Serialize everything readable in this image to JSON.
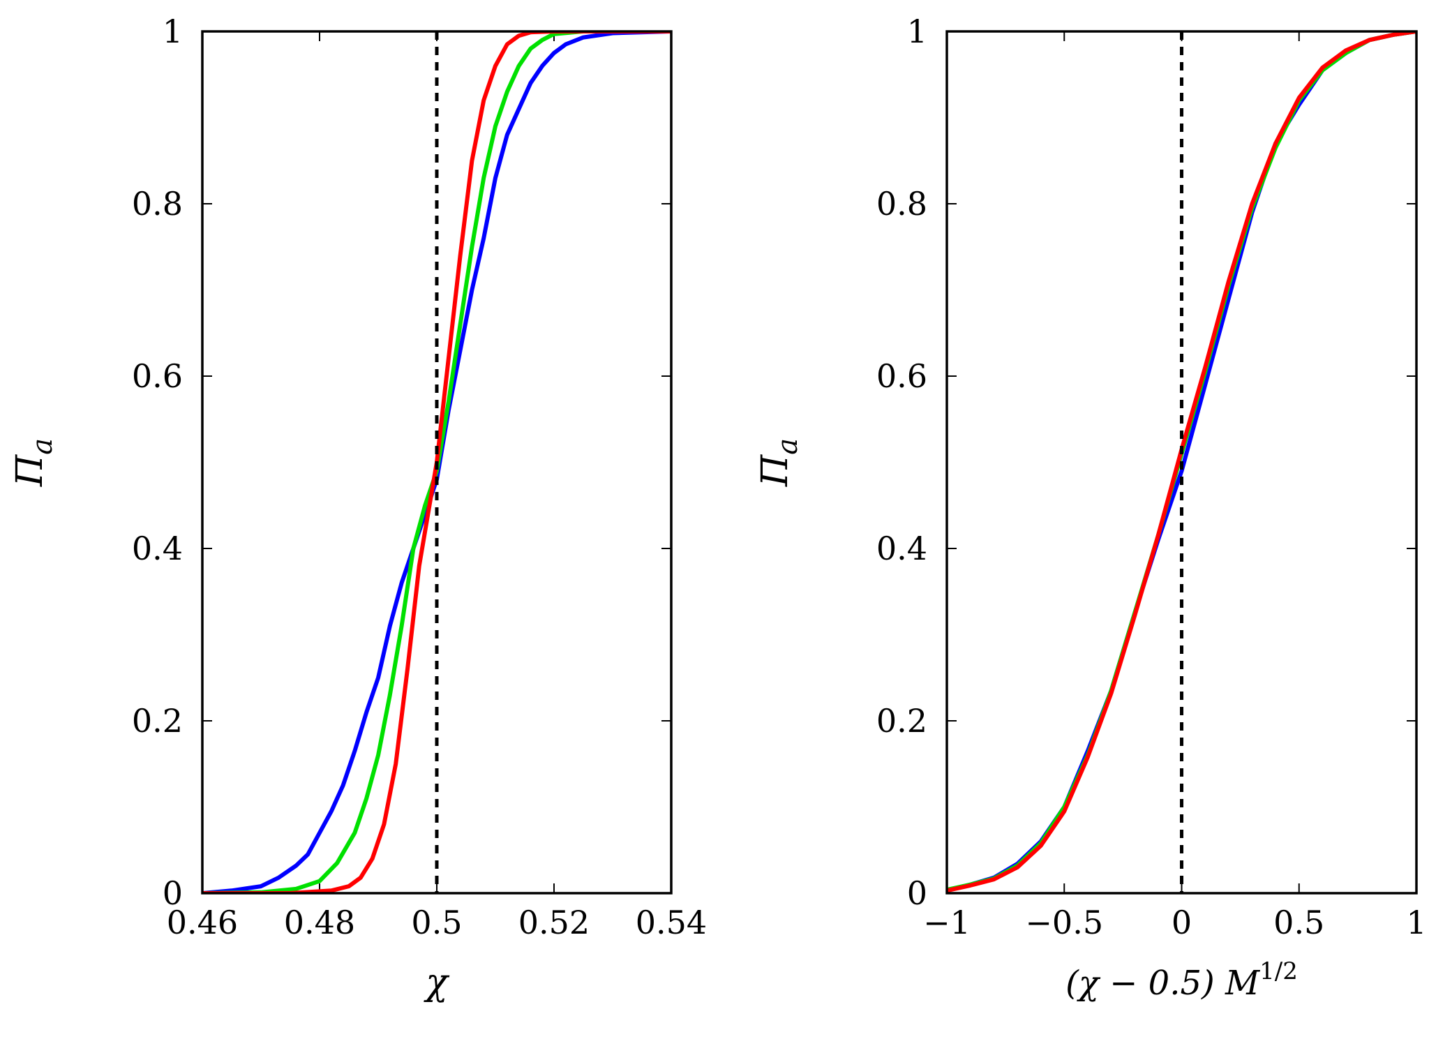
{
  "colors": {
    "blue": "#0000ff",
    "green": "#00e000",
    "red": "#ff0000",
    "axis": "#000000"
  },
  "chart_data": [
    {
      "type": "line",
      "panel": "left",
      "xlabel": "χ",
      "ylabel": "Π",
      "ylabel_sub": "a",
      "xlim": [
        0.46,
        0.54
      ],
      "ylim": [
        0,
        1
      ],
      "xticks": [
        0.46,
        0.48,
        0.5,
        0.52,
        0.54
      ],
      "xtick_labels": [
        "0.46",
        "0.48",
        "0.5",
        "0.52",
        "0.54"
      ],
      "yticks": [
        0,
        0.2,
        0.4,
        0.6,
        0.8,
        1
      ],
      "ytick_labels": [
        "0",
        "0.2",
        "0.4",
        "0.6",
        "0.8",
        "1"
      ],
      "vline_x": 0.5,
      "series": [
        {
          "name": "blue",
          "color": "#0000ff",
          "x": [
            0.46,
            0.465,
            0.47,
            0.473,
            0.476,
            0.478,
            0.48,
            0.482,
            0.484,
            0.486,
            0.488,
            0.49,
            0.492,
            0.494,
            0.496,
            0.498,
            0.5,
            0.502,
            0.504,
            0.506,
            0.508,
            0.51,
            0.512,
            0.514,
            0.516,
            0.518,
            0.52,
            0.522,
            0.525,
            0.53,
            0.54
          ],
          "y": [
            0.0,
            0.003,
            0.008,
            0.018,
            0.032,
            0.045,
            0.07,
            0.095,
            0.125,
            0.165,
            0.21,
            0.25,
            0.31,
            0.36,
            0.4,
            0.44,
            0.48,
            0.56,
            0.63,
            0.7,
            0.76,
            0.83,
            0.88,
            0.91,
            0.94,
            0.96,
            0.975,
            0.985,
            0.993,
            0.998,
            1.0
          ]
        },
        {
          "name": "green",
          "color": "#00e000",
          "x": [
            0.46,
            0.47,
            0.476,
            0.48,
            0.483,
            0.486,
            0.488,
            0.49,
            0.492,
            0.494,
            0.496,
            0.498,
            0.5,
            0.502,
            0.504,
            0.506,
            0.508,
            0.51,
            0.512,
            0.514,
            0.516,
            0.518,
            0.52,
            0.525,
            0.54
          ],
          "y": [
            0.0,
            0.001,
            0.005,
            0.014,
            0.035,
            0.07,
            0.11,
            0.16,
            0.23,
            0.31,
            0.4,
            0.45,
            0.49,
            0.57,
            0.66,
            0.75,
            0.83,
            0.89,
            0.93,
            0.96,
            0.98,
            0.99,
            0.997,
            1.0,
            1.0
          ]
        },
        {
          "name": "red",
          "color": "#ff0000",
          "x": [
            0.46,
            0.475,
            0.482,
            0.485,
            0.487,
            0.489,
            0.491,
            0.493,
            0.495,
            0.497,
            0.499,
            0.5,
            0.502,
            0.504,
            0.506,
            0.508,
            0.51,
            0.512,
            0.514,
            0.516,
            0.52,
            0.54
          ],
          "y": [
            0.0,
            0.0,
            0.003,
            0.008,
            0.018,
            0.04,
            0.08,
            0.15,
            0.26,
            0.38,
            0.46,
            0.5,
            0.62,
            0.74,
            0.85,
            0.92,
            0.96,
            0.985,
            0.995,
            0.999,
            1.0,
            1.0
          ]
        }
      ]
    },
    {
      "type": "line",
      "panel": "right",
      "xlabel": "(χ − 0.5) M",
      "xlabel_sup": "1/2",
      "ylabel": "Π",
      "ylabel_sub": "a",
      "xlim": [
        -1,
        1
      ],
      "ylim": [
        0,
        1
      ],
      "xticks": [
        -1,
        -0.5,
        0,
        0.5,
        1
      ],
      "xtick_labels": [
        "−1",
        "−0.5",
        "0",
        "0.5",
        "1"
      ],
      "yticks": [
        0,
        0.2,
        0.4,
        0.6,
        0.8,
        1
      ],
      "ytick_labels": [
        "0",
        "0.2",
        "0.4",
        "0.6",
        "0.8",
        "1"
      ],
      "vline_x": 0,
      "series": [
        {
          "name": "blue",
          "color": "#0000ff",
          "x": [
            -1.0,
            -0.9,
            -0.8,
            -0.7,
            -0.6,
            -0.5,
            -0.4,
            -0.3,
            -0.2,
            -0.1,
            0.0,
            0.1,
            0.2,
            0.3,
            0.4,
            0.5,
            0.6,
            0.7,
            0.8,
            0.9,
            1.0
          ],
          "y": [
            0.003,
            0.01,
            0.018,
            0.034,
            0.06,
            0.1,
            0.165,
            0.235,
            0.325,
            0.41,
            0.49,
            0.59,
            0.69,
            0.79,
            0.87,
            0.915,
            0.955,
            0.975,
            0.99,
            0.996,
            1.0
          ]
        },
        {
          "name": "green",
          "color": "#00e000",
          "x": [
            -1.0,
            -0.9,
            -0.8,
            -0.7,
            -0.6,
            -0.5,
            -0.4,
            -0.3,
            -0.2,
            -0.1,
            0.0,
            0.1,
            0.2,
            0.3,
            0.4,
            0.5,
            0.6,
            0.7,
            0.8,
            0.9,
            1.0
          ],
          "y": [
            0.004,
            0.01,
            0.017,
            0.032,
            0.058,
            0.1,
            0.16,
            0.235,
            0.325,
            0.415,
            0.51,
            0.605,
            0.705,
            0.795,
            0.865,
            0.92,
            0.955,
            0.975,
            0.99,
            0.996,
            1.0
          ]
        },
        {
          "name": "red",
          "color": "#ff0000",
          "x": [
            -1.0,
            -0.9,
            -0.8,
            -0.7,
            -0.6,
            -0.5,
            -0.4,
            -0.3,
            -0.2,
            -0.1,
            0.0,
            0.1,
            0.2,
            0.3,
            0.4,
            0.5,
            0.6,
            0.7,
            0.8,
            0.9,
            1.0
          ],
          "y": [
            0.003,
            0.009,
            0.016,
            0.03,
            0.055,
            0.095,
            0.158,
            0.232,
            0.322,
            0.415,
            0.515,
            0.61,
            0.71,
            0.8,
            0.87,
            0.923,
            0.958,
            0.978,
            0.99,
            0.996,
            1.0
          ]
        }
      ]
    }
  ]
}
